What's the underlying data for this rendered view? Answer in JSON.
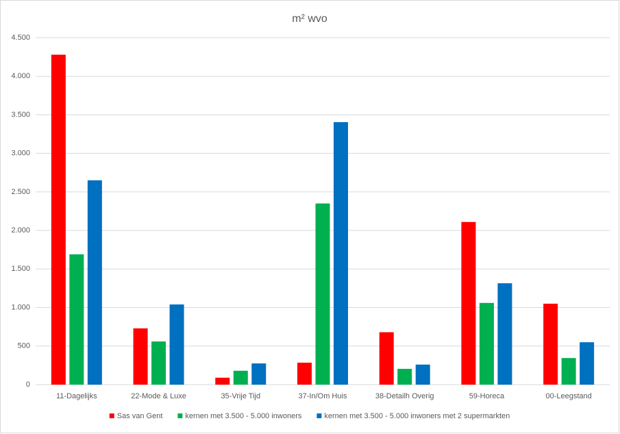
{
  "chart_data": {
    "type": "bar",
    "title": "m² wvo",
    "categories": [
      "11-Dagelijks",
      "22-Mode & Luxe",
      "35-Vrije Tijd",
      "37-In/Om Huis",
      "38-Detailh Overig",
      "59-Horeca",
      "00-Leegstand"
    ],
    "series": [
      {
        "name": "Sas van Gent",
        "color": "#ff0000",
        "values": [
          4280,
          730,
          90,
          285,
          680,
          2110,
          1050
        ]
      },
      {
        "name": "kernen met 3.500 - 5.000 inwoners",
        "color": "#00b050",
        "values": [
          1690,
          560,
          180,
          2350,
          205,
          1060,
          345
        ]
      },
      {
        "name": "kernen met 3.500 - 5.000 inwoners met 2 supermarkten",
        "color": "#0070c0",
        "values": [
          2650,
          1040,
          275,
          3405,
          260,
          1315,
          550
        ]
      }
    ],
    "ylim": [
      0,
      4500
    ],
    "yticks": [
      0,
      500,
      {
        "value": 1000,
        "label": "1.000"
      },
      {
        "value": 1500,
        "label": "1.500"
      },
      {
        "value": 2000,
        "label": "2.000"
      },
      {
        "value": 2500,
        "label": "2.500"
      },
      {
        "value": 3000,
        "label": "3.000"
      },
      {
        "value": 3500,
        "label": "3.500"
      },
      {
        "value": 4000,
        "label": "4.000"
      },
      {
        "value": 4500,
        "label": "4.500"
      }
    ],
    "grid": true,
    "legend": "bottom"
  }
}
